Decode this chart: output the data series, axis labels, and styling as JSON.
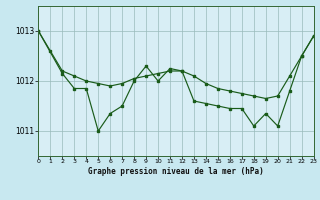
{
  "title": "Graphe pression niveau de la mer (hPa)",
  "background_color": "#c8e8f0",
  "plot_bg_color": "#d8eef5",
  "line_color": "#1a5c1a",
  "grid_color": "#99bbbb",
  "xlim": [
    0,
    23
  ],
  "ylim": [
    1010.5,
    1013.5
  ],
  "yticks": [
    1011,
    1012,
    1013
  ],
  "xticks": [
    0,
    1,
    2,
    3,
    4,
    5,
    6,
    7,
    8,
    9,
    10,
    11,
    12,
    13,
    14,
    15,
    16,
    17,
    18,
    19,
    20,
    21,
    22,
    23
  ],
  "series1_x": [
    0,
    1,
    2,
    3,
    4,
    5,
    6,
    7,
    8,
    9,
    10,
    11,
    12,
    13,
    14,
    15,
    16,
    17,
    18,
    19,
    20,
    21,
    22,
    23
  ],
  "series1_y": [
    1013.0,
    1012.6,
    1012.2,
    1012.1,
    1012.0,
    1011.95,
    1011.9,
    1011.95,
    1012.05,
    1012.1,
    1012.15,
    1012.2,
    1012.2,
    1012.1,
    1011.95,
    1011.85,
    1011.8,
    1011.75,
    1011.7,
    1011.65,
    1011.7,
    1012.1,
    1012.5,
    1012.9
  ],
  "series2_x": [
    0,
    2,
    3,
    4,
    5,
    6,
    7,
    8,
    9,
    10,
    11,
    12,
    13,
    14,
    15,
    16,
    17,
    18,
    19,
    20,
    21,
    22,
    23
  ],
  "series2_y": [
    1013.0,
    1012.15,
    1011.85,
    1011.85,
    1011.0,
    1011.35,
    1011.5,
    1012.0,
    1012.3,
    1012.0,
    1012.25,
    1012.2,
    1011.6,
    1011.55,
    1011.5,
    1011.45,
    1011.45,
    1011.1,
    1011.35,
    1011.1,
    1011.8,
    1012.5,
    1012.9
  ]
}
